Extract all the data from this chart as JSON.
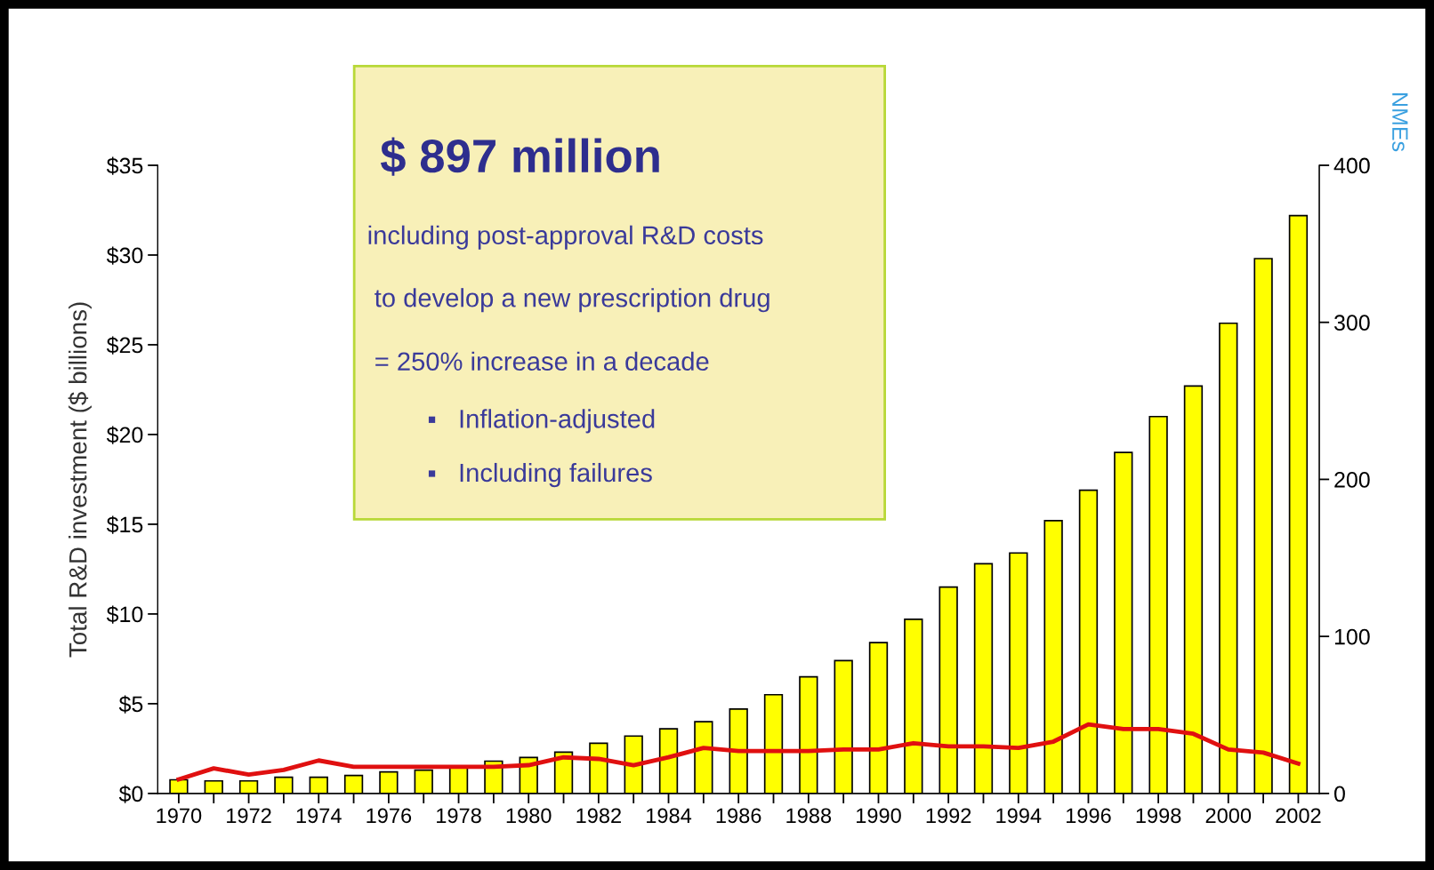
{
  "chart_data": {
    "type": "bar",
    "ylabel": "Total R&D investment ($ billions)",
    "y2label": "NMEs",
    "categories": [
      "1970",
      null,
      "1972",
      null,
      "1974",
      null,
      "1976",
      null,
      "1978",
      null,
      "1980",
      null,
      "1982",
      null,
      "1984",
      null,
      "1986",
      null,
      "1988",
      null,
      "1990",
      null,
      "1992",
      null,
      "1994",
      null,
      "1996",
      null,
      "1998",
      null,
      "2000",
      null,
      "2002"
    ],
    "series": [
      {
        "color": "#ffff00",
        "values": [
          0.76,
          0.7,
          0.7,
          0.9,
          0.9,
          1.0,
          1.2,
          1.3,
          1.5,
          1.8,
          2.0,
          2.3,
          2.8,
          3.2,
          3.6,
          4.0,
          4.7,
          5.5,
          6.5,
          7.4,
          8.4,
          9.7,
          11.5,
          12.8,
          13.4,
          15.2,
          16.9,
          19.0,
          21.0,
          22.7,
          26.2,
          29.8,
          32.2
        ]
      },
      {
        "type": "line",
        "axis": "y2",
        "color": "#e01010",
        "values": [
          9,
          16,
          12,
          15,
          21,
          17,
          17,
          17,
          17,
          17,
          18,
          23,
          22,
          18,
          23,
          29,
          27,
          27,
          27,
          28,
          28,
          32,
          30,
          30,
          29,
          33,
          44,
          41,
          41,
          38,
          28,
          26,
          19
        ]
      }
    ],
    "ylim": [
      0,
      35
    ],
    "yticks": [
      {
        "value": 0,
        "label": "$0"
      },
      {
        "value": 5,
        "label": "$5"
      },
      {
        "value": 10,
        "label": "$10"
      },
      {
        "value": 15,
        "label": "$15"
      },
      {
        "value": 20,
        "label": "$20"
      },
      {
        "value": 25,
        "label": "$25"
      },
      {
        "value": 30,
        "label": "$30"
      },
      {
        "value": 35,
        "label": "$35"
      }
    ],
    "y2lim": [
      0,
      400
    ],
    "y2ticks": [
      0,
      100,
      200,
      300,
      400
    ],
    "annotations": [
      "$ 897 million",
      "including post-approval R&D costs",
      "to develop a new prescription drug",
      "= 250% increase in a decade",
      "▪   Inflation-adjusted",
      "▪   Including failures"
    ],
    "grid": false,
    "legend": false,
    "marker": "none",
    "line_style": "solid"
  }
}
